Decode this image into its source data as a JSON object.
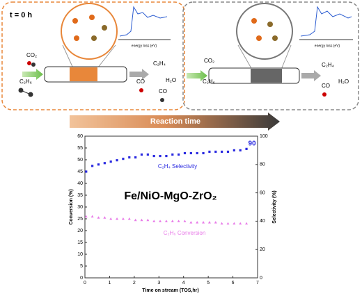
{
  "diagram": {
    "left_panel": {
      "label": "t = 0 h",
      "reactant_1": "CO₂",
      "reactant_2": "C₂H₆",
      "product_1": "C₂H₄",
      "product_2": "H₂O",
      "product_3": "CO",
      "product_4": "CO",
      "spectrum_axis": "energy loss (eV)"
    },
    "right_panel": {
      "reactant_1": "CO₂",
      "reactant_2": "C₂H₆",
      "product_1": "C₂H₄",
      "product_2": "H₂O",
      "product_3": "CO",
      "spectrum_axis": "energy loss (eV)"
    },
    "arrow_label": "Reaction time"
  },
  "chart_data": {
    "type": "scatter",
    "title": "Fe/NiO-MgO-ZrO₂",
    "xlabel": "Time on stream (TOS,hr)",
    "ylabel": "Conversion (%)",
    "y2label": "Selectivity (%)",
    "annotation": "90",
    "x": [
      0.05,
      0.3,
      0.55,
      0.8,
      1.05,
      1.3,
      1.55,
      1.8,
      2.05,
      2.3,
      2.55,
      2.8,
      3.05,
      3.3,
      3.55,
      3.8,
      4.05,
      4.3,
      4.55,
      4.8,
      5.05,
      5.3,
      5.55,
      5.8,
      6.05,
      6.3,
      6.55
    ],
    "series": [
      {
        "name": "C₂H₄ Selectivity",
        "color": "#2a2ae0",
        "marker": "square",
        "axis": "y2",
        "values": [
          75,
          79,
          80,
          81,
          82,
          83,
          84,
          85,
          85,
          87,
          87,
          86,
          86,
          86,
          87,
          87,
          88,
          88,
          88,
          88,
          89,
          89,
          89,
          89,
          90,
          90,
          91
        ]
      },
      {
        "name": "C₂H₆ Conversion",
        "color": "#e87be8",
        "marker": "triangle",
        "values": [
          26,
          26,
          25.5,
          25.5,
          25,
          25,
          25,
          25,
          24.5,
          24.5,
          24.5,
          24,
          24,
          24,
          24,
          24,
          24,
          23.5,
          23.5,
          23.5,
          23.5,
          23.5,
          23,
          23,
          23,
          23,
          23
        ]
      }
    ],
    "xlim": [
      0,
      7
    ],
    "xticks": [
      0,
      1,
      2,
      3,
      4,
      5,
      6,
      7
    ],
    "ylim": [
      0,
      60
    ],
    "yticks": [
      0,
      5,
      10,
      15,
      20,
      25,
      30,
      35,
      40,
      45,
      50,
      55,
      60
    ],
    "y2lim": [
      0,
      100
    ],
    "y2ticks": [
      0,
      20,
      40,
      60,
      80,
      100
    ]
  }
}
